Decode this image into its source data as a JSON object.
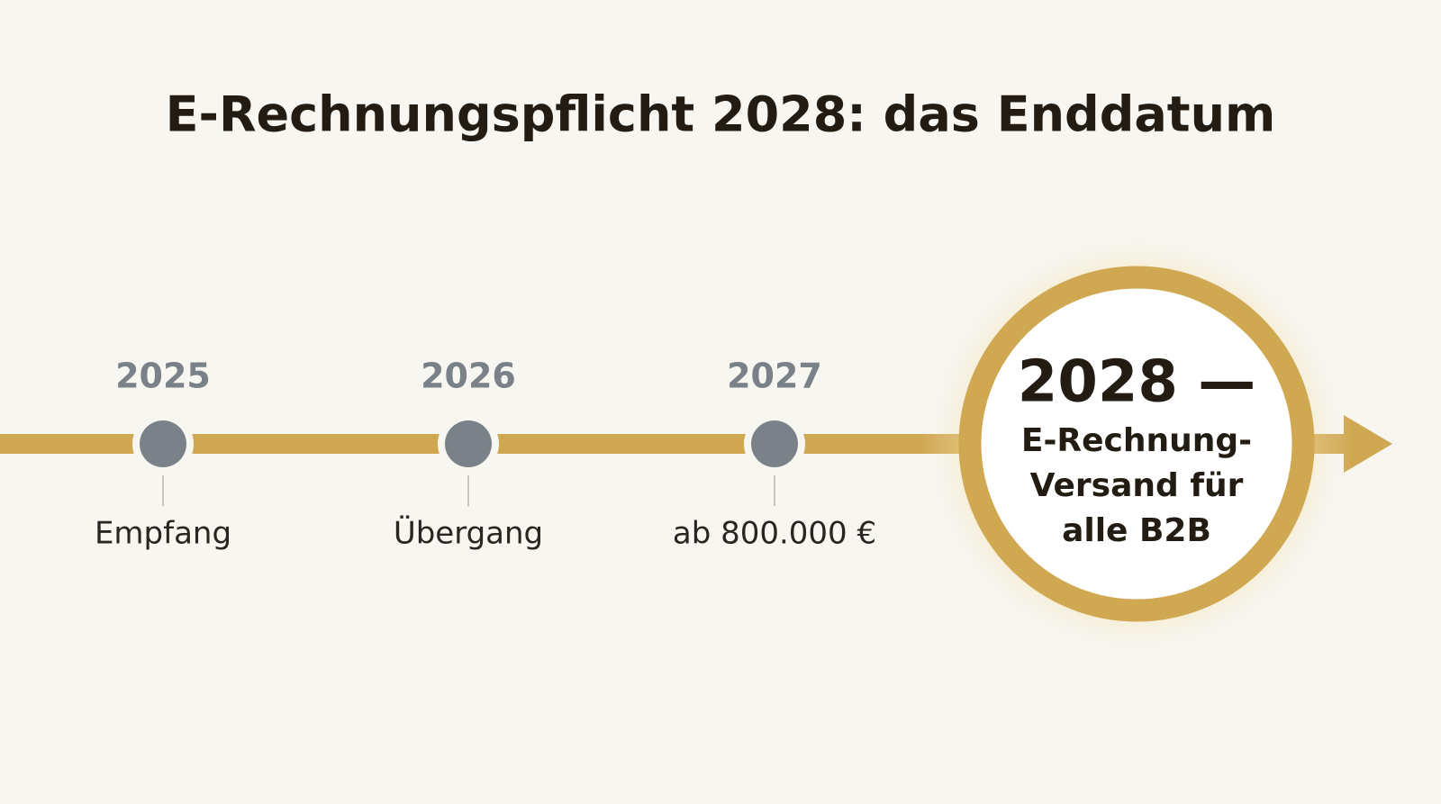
{
  "title": "E-Rechnungspflicht 2028: das Enddatum",
  "milestones": [
    {
      "year": "2025",
      "label": "Empfang"
    },
    {
      "year": "2026",
      "label": "Übergang"
    },
    {
      "year": "2027",
      "label": "ab 800.000 €"
    }
  ],
  "final": {
    "year": "2028 —",
    "lines": [
      "E-Rechnung-",
      "Versand für",
      "alle B2B"
    ]
  }
}
